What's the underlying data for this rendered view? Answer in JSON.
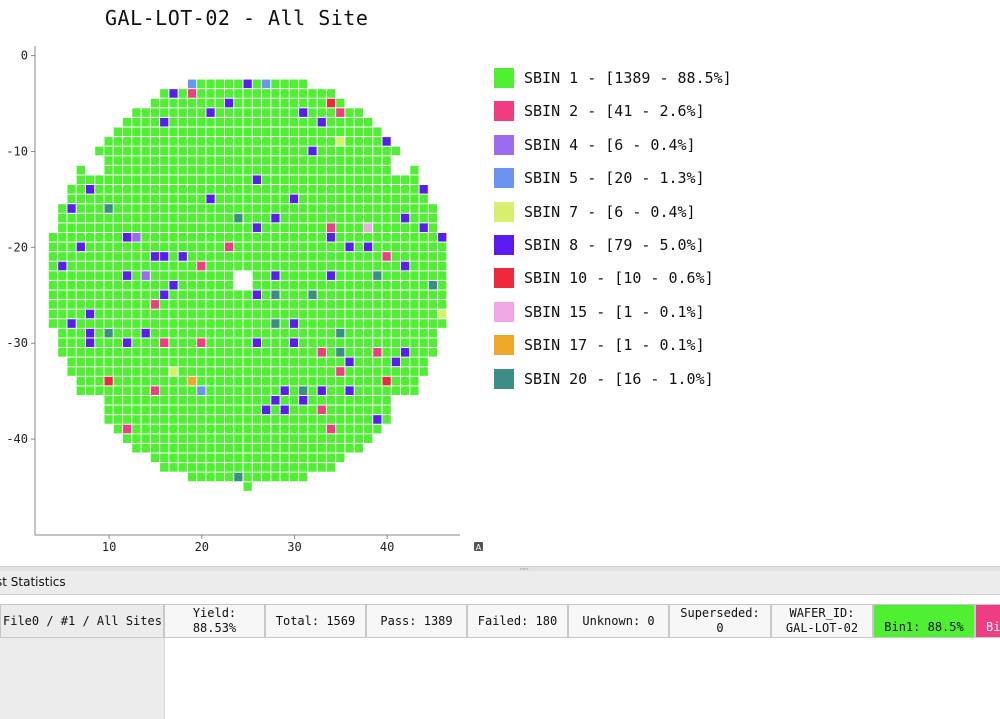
{
  "chart": {
    "title": "GAL-LOT-02 - All Site",
    "x_ticks": [
      "10",
      "20",
      "30",
      "40"
    ],
    "y_ticks": [
      "0",
      "-10",
      "-20",
      "-30",
      "-40"
    ],
    "x_range": [
      2,
      47
    ],
    "y_range": [
      1,
      -50
    ],
    "die_step": 1,
    "wafer_center": [
      25,
      -23.5
    ],
    "wafer_radius": 21.5,
    "corner_button": "A"
  },
  "chart_data": {
    "type": "heatmap",
    "title": "GAL-LOT-02 - All Site",
    "x_ticks": [
      10,
      20,
      30,
      40
    ],
    "y_ticks": [
      0,
      -10,
      -20,
      -30,
      -40
    ],
    "xlim": [
      2,
      47
    ],
    "ylim": [
      -50,
      1
    ],
    "default_bin": "SBIN 1",
    "empty_dies": [
      [
        8,
        -11
      ],
      [
        9,
        -11
      ],
      [
        8,
        -12
      ],
      [
        9,
        -12
      ],
      [
        41,
        -11
      ],
      [
        42,
        -11
      ],
      [
        41,
        -12
      ],
      [
        42,
        -12
      ],
      [
        24,
        -23
      ],
      [
        25,
        -23
      ],
      [
        24,
        -24
      ],
      [
        25,
        -24
      ],
      [
        8,
        -36
      ],
      [
        9,
        -36
      ],
      [
        8,
        -37
      ],
      [
        9,
        -37
      ],
      [
        41,
        -36
      ],
      [
        42,
        -36
      ],
      [
        41,
        -37
      ],
      [
        42,
        -37
      ]
    ],
    "fail_dies": [
      {
        "x": 19,
        "y": -3,
        "bin": "SBIN 5"
      },
      {
        "x": 25,
        "y": -3,
        "bin": "SBIN 8"
      },
      {
        "x": 27,
        "y": -3,
        "bin": "SBIN 5"
      },
      {
        "x": 17,
        "y": -4,
        "bin": "SBIN 8"
      },
      {
        "x": 19,
        "y": -4,
        "bin": "SBIN 2"
      },
      {
        "x": 23,
        "y": -5,
        "bin": "SBIN 8"
      },
      {
        "x": 34,
        "y": -5,
        "bin": "SBIN 10"
      },
      {
        "x": 36,
        "y": -5,
        "bin": "SBIN 8"
      },
      {
        "x": 21,
        "y": -6,
        "bin": "SBIN 8"
      },
      {
        "x": 31,
        "y": -6,
        "bin": "SBIN 8"
      },
      {
        "x": 35,
        "y": -6,
        "bin": "SBIN 2"
      },
      {
        "x": 16,
        "y": -7,
        "bin": "SBIN 8"
      },
      {
        "x": 33,
        "y": -7,
        "bin": "SBIN 8"
      },
      {
        "x": 35,
        "y": -9,
        "bin": "SBIN 7"
      },
      {
        "x": 32,
        "y": -10,
        "bin": "SBIN 8"
      },
      {
        "x": 40,
        "y": -9,
        "bin": "SBIN 8"
      },
      {
        "x": 5,
        "y": -13,
        "bin": "SBIN 5"
      },
      {
        "x": 6,
        "y": -13,
        "bin": "SBIN 8"
      },
      {
        "x": 45,
        "y": -13,
        "bin": "SBIN 5"
      },
      {
        "x": 8,
        "y": -14,
        "bin": "SBIN 8"
      },
      {
        "x": 26,
        "y": -13,
        "bin": "SBIN 8"
      },
      {
        "x": 44,
        "y": -14,
        "bin": "SBIN 8"
      },
      {
        "x": 4,
        "y": -15,
        "bin": "SBIN 5"
      },
      {
        "x": 21,
        "y": -15,
        "bin": "SBIN 8"
      },
      {
        "x": 30,
        "y": -15,
        "bin": "SBIN 8"
      },
      {
        "x": 45,
        "y": -15,
        "bin": "SBIN 5"
      },
      {
        "x": 6,
        "y": -16,
        "bin": "SBIN 8"
      },
      {
        "x": 10,
        "y": -16,
        "bin": "SBIN 20"
      },
      {
        "x": 46,
        "y": -16,
        "bin": "SBIN 10"
      },
      {
        "x": 24,
        "y": -17,
        "bin": "SBIN 20"
      },
      {
        "x": 28,
        "y": -17,
        "bin": "SBIN 8"
      },
      {
        "x": 42,
        "y": -17,
        "bin": "SBIN 8"
      },
      {
        "x": 26,
        "y": -18,
        "bin": "SBIN 8"
      },
      {
        "x": 34,
        "y": -18,
        "bin": "SBIN 2"
      },
      {
        "x": 38,
        "y": -18,
        "bin": "SBIN 15"
      },
      {
        "x": 44,
        "y": -18,
        "bin": "SBIN 8"
      },
      {
        "x": 12,
        "y": -19,
        "bin": "SBIN 8"
      },
      {
        "x": 13,
        "y": -19,
        "bin": "SBIN 4"
      },
      {
        "x": 34,
        "y": -19,
        "bin": "SBIN 8"
      },
      {
        "x": 46,
        "y": -19,
        "bin": "SBIN 8"
      },
      {
        "x": 7,
        "y": -20,
        "bin": "SBIN 8"
      },
      {
        "x": 23,
        "y": -20,
        "bin": "SBIN 2"
      },
      {
        "x": 36,
        "y": -20,
        "bin": "SBIN 8"
      },
      {
        "x": 38,
        "y": -20,
        "bin": "SBIN 8"
      },
      {
        "x": 15,
        "y": -21,
        "bin": "SBIN 8"
      },
      {
        "x": 16,
        "y": -21,
        "bin": "SBIN 8"
      },
      {
        "x": 18,
        "y": -21,
        "bin": "SBIN 8"
      },
      {
        "x": 40,
        "y": -21,
        "bin": "SBIN 2"
      },
      {
        "x": 5,
        "y": -22,
        "bin": "SBIN 8"
      },
      {
        "x": 20,
        "y": -22,
        "bin": "SBIN 2"
      },
      {
        "x": 42,
        "y": -22,
        "bin": "SBIN 8"
      },
      {
        "x": 12,
        "y": -23,
        "bin": "SBIN 8"
      },
      {
        "x": 14,
        "y": -23,
        "bin": "SBIN 4"
      },
      {
        "x": 28,
        "y": -23,
        "bin": "SBIN 8"
      },
      {
        "x": 34,
        "y": -23,
        "bin": "SBIN 8"
      },
      {
        "x": 39,
        "y": -23,
        "bin": "SBIN 20"
      },
      {
        "x": 17,
        "y": -24,
        "bin": "SBIN 8"
      },
      {
        "x": 45,
        "y": -24,
        "bin": "SBIN 20"
      },
      {
        "x": 16,
        "y": -25,
        "bin": "SBIN 8"
      },
      {
        "x": 26,
        "y": -25,
        "bin": "SBIN 8"
      },
      {
        "x": 28,
        "y": -25,
        "bin": "SBIN 20"
      },
      {
        "x": 32,
        "y": -25,
        "bin": "SBIN 20"
      },
      {
        "x": 15,
        "y": -26,
        "bin": "SBIN 2"
      },
      {
        "x": 8,
        "y": -27,
        "bin": "SBIN 8"
      },
      {
        "x": 46,
        "y": -27,
        "bin": "SBIN 7"
      },
      {
        "x": 6,
        "y": -28,
        "bin": "SBIN 8"
      },
      {
        "x": 28,
        "y": -28,
        "bin": "SBIN 20"
      },
      {
        "x": 30,
        "y": -28,
        "bin": "SBIN 8"
      },
      {
        "x": 8,
        "y": -29,
        "bin": "SBIN 8"
      },
      {
        "x": 10,
        "y": -29,
        "bin": "SBIN 20"
      },
      {
        "x": 14,
        "y": -29,
        "bin": "SBIN 8"
      },
      {
        "x": 35,
        "y": -29,
        "bin": "SBIN 20"
      },
      {
        "x": 8,
        "y": -30,
        "bin": "SBIN 8"
      },
      {
        "x": 12,
        "y": -30,
        "bin": "SBIN 8"
      },
      {
        "x": 16,
        "y": -30,
        "bin": "SBIN 2"
      },
      {
        "x": 20,
        "y": -30,
        "bin": "SBIN 2"
      },
      {
        "x": 26,
        "y": -30,
        "bin": "SBIN 8"
      },
      {
        "x": 30,
        "y": -30,
        "bin": "SBIN 8"
      },
      {
        "x": 33,
        "y": -31,
        "bin": "SBIN 2"
      },
      {
        "x": 35,
        "y": -31,
        "bin": "SBIN 20"
      },
      {
        "x": 39,
        "y": -31,
        "bin": "SBIN 2"
      },
      {
        "x": 42,
        "y": -31,
        "bin": "SBIN 8"
      },
      {
        "x": 46,
        "y": -31,
        "bin": "SBIN 10"
      },
      {
        "x": 4,
        "y": -32,
        "bin": "SBIN 5"
      },
      {
        "x": 36,
        "y": -32,
        "bin": "SBIN 8"
      },
      {
        "x": 41,
        "y": -32,
        "bin": "SBIN 8"
      },
      {
        "x": 17,
        "y": -33,
        "bin": "SBIN 7"
      },
      {
        "x": 35,
        "y": -33,
        "bin": "SBIN 2"
      },
      {
        "x": 10,
        "y": -34,
        "bin": "SBIN 10"
      },
      {
        "x": 19,
        "y": -34,
        "bin": "SBIN 17"
      },
      {
        "x": 40,
        "y": -34,
        "bin": "SBIN 10"
      },
      {
        "x": 44,
        "y": -34,
        "bin": "SBIN 5"
      },
      {
        "x": 15,
        "y": -35,
        "bin": "SBIN 2"
      },
      {
        "x": 20,
        "y": -35,
        "bin": "SBIN 5"
      },
      {
        "x": 29,
        "y": -35,
        "bin": "SBIN 8"
      },
      {
        "x": 31,
        "y": -35,
        "bin": "SBIN 20"
      },
      {
        "x": 33,
        "y": -35,
        "bin": "SBIN 8"
      },
      {
        "x": 36,
        "y": -35,
        "bin": "SBIN 8"
      },
      {
        "x": 28,
        "y": -36,
        "bin": "SBIN 8"
      },
      {
        "x": 31,
        "y": -36,
        "bin": "SBIN 8"
      },
      {
        "x": 27,
        "y": -37,
        "bin": "SBIN 8"
      },
      {
        "x": 29,
        "y": -37,
        "bin": "SBIN 8"
      },
      {
        "x": 33,
        "y": -37,
        "bin": "SBIN 2"
      },
      {
        "x": 39,
        "y": -38,
        "bin": "SBIN 8"
      },
      {
        "x": 12,
        "y": -39,
        "bin": "SBIN 2"
      },
      {
        "x": 34,
        "y": -39,
        "bin": "SBIN 2"
      },
      {
        "x": 11,
        "y": -41,
        "bin": "SBIN 4"
      },
      {
        "x": 24,
        "y": -44,
        "bin": "SBIN 20"
      },
      {
        "x": 27,
        "y": -45,
        "bin": "SBIN 5"
      },
      {
        "x": 28,
        "y": -45,
        "bin": "SBIN 2"
      },
      {
        "x": 30,
        "y": -45,
        "bin": "SBIN 5"
      }
    ],
    "legend": [
      {
        "bin": "SBIN 1",
        "label": "SBIN 1 - [1389 - 88.5%]",
        "color": "#4ff032",
        "count": 1389,
        "percent": 88.5
      },
      {
        "bin": "SBIN 2",
        "label": "SBIN 2 - [41 - 2.6%]",
        "color": "#f03c82",
        "count": 41,
        "percent": 2.6
      },
      {
        "bin": "SBIN 4",
        "label": "SBIN 4 - [6 - 0.4%]",
        "color": "#9c6cf0",
        "count": 6,
        "percent": 0.4
      },
      {
        "bin": "SBIN 5",
        "label": "SBIN 5 - [20 - 1.3%]",
        "color": "#6a94f0",
        "count": 20,
        "percent": 1.3
      },
      {
        "bin": "SBIN 7",
        "label": "SBIN 7 - [6 - 0.4%]",
        "color": "#d8ef6e",
        "count": 6,
        "percent": 0.4
      },
      {
        "bin": "SBIN 8",
        "label": "SBIN 8 - [79 - 5.0%]",
        "color": "#5a1cf0",
        "count": 79,
        "percent": 5.0
      },
      {
        "bin": "SBIN 10",
        "label": "SBIN 10 - [10 - 0.6%]",
        "color": "#f0283c",
        "count": 10,
        "percent": 0.6
      },
      {
        "bin": "SBIN 15",
        "label": "SBIN 15 - [1 - 0.1%]",
        "color": "#f0a8e6",
        "count": 1,
        "percent": 0.1
      },
      {
        "bin": "SBIN 17",
        "label": "SBIN 17 - [1 - 0.1%]",
        "color": "#f0a82a",
        "count": 1,
        "percent": 0.1
      },
      {
        "bin": "SBIN 20",
        "label": "SBIN 20 - [16 - 1.0%]",
        "color": "#3e8c86",
        "count": 16,
        "percent": 1.0
      }
    ]
  },
  "panel": {
    "title": "st Statistics"
  },
  "stats": {
    "file_label": "File0 / #1 / All Sites",
    "yield_label": "Yield:",
    "yield_value": "88.53%",
    "total": "Total: 1569",
    "pass": "Pass: 1389",
    "failed": "Failed: 180",
    "unknown": "Unknown: 0",
    "superseded_label": "Superseded:",
    "superseded_value": "0",
    "wafer_id_label": "WAFER_ID:",
    "wafer_id_value": "GAL-LOT-02",
    "bin1": "Bin1: 88.5%",
    "bin2": "Bi"
  },
  "colors": {
    "grid": "#ffffff",
    "axis": "#888888",
    "pass": "#4ff032"
  }
}
